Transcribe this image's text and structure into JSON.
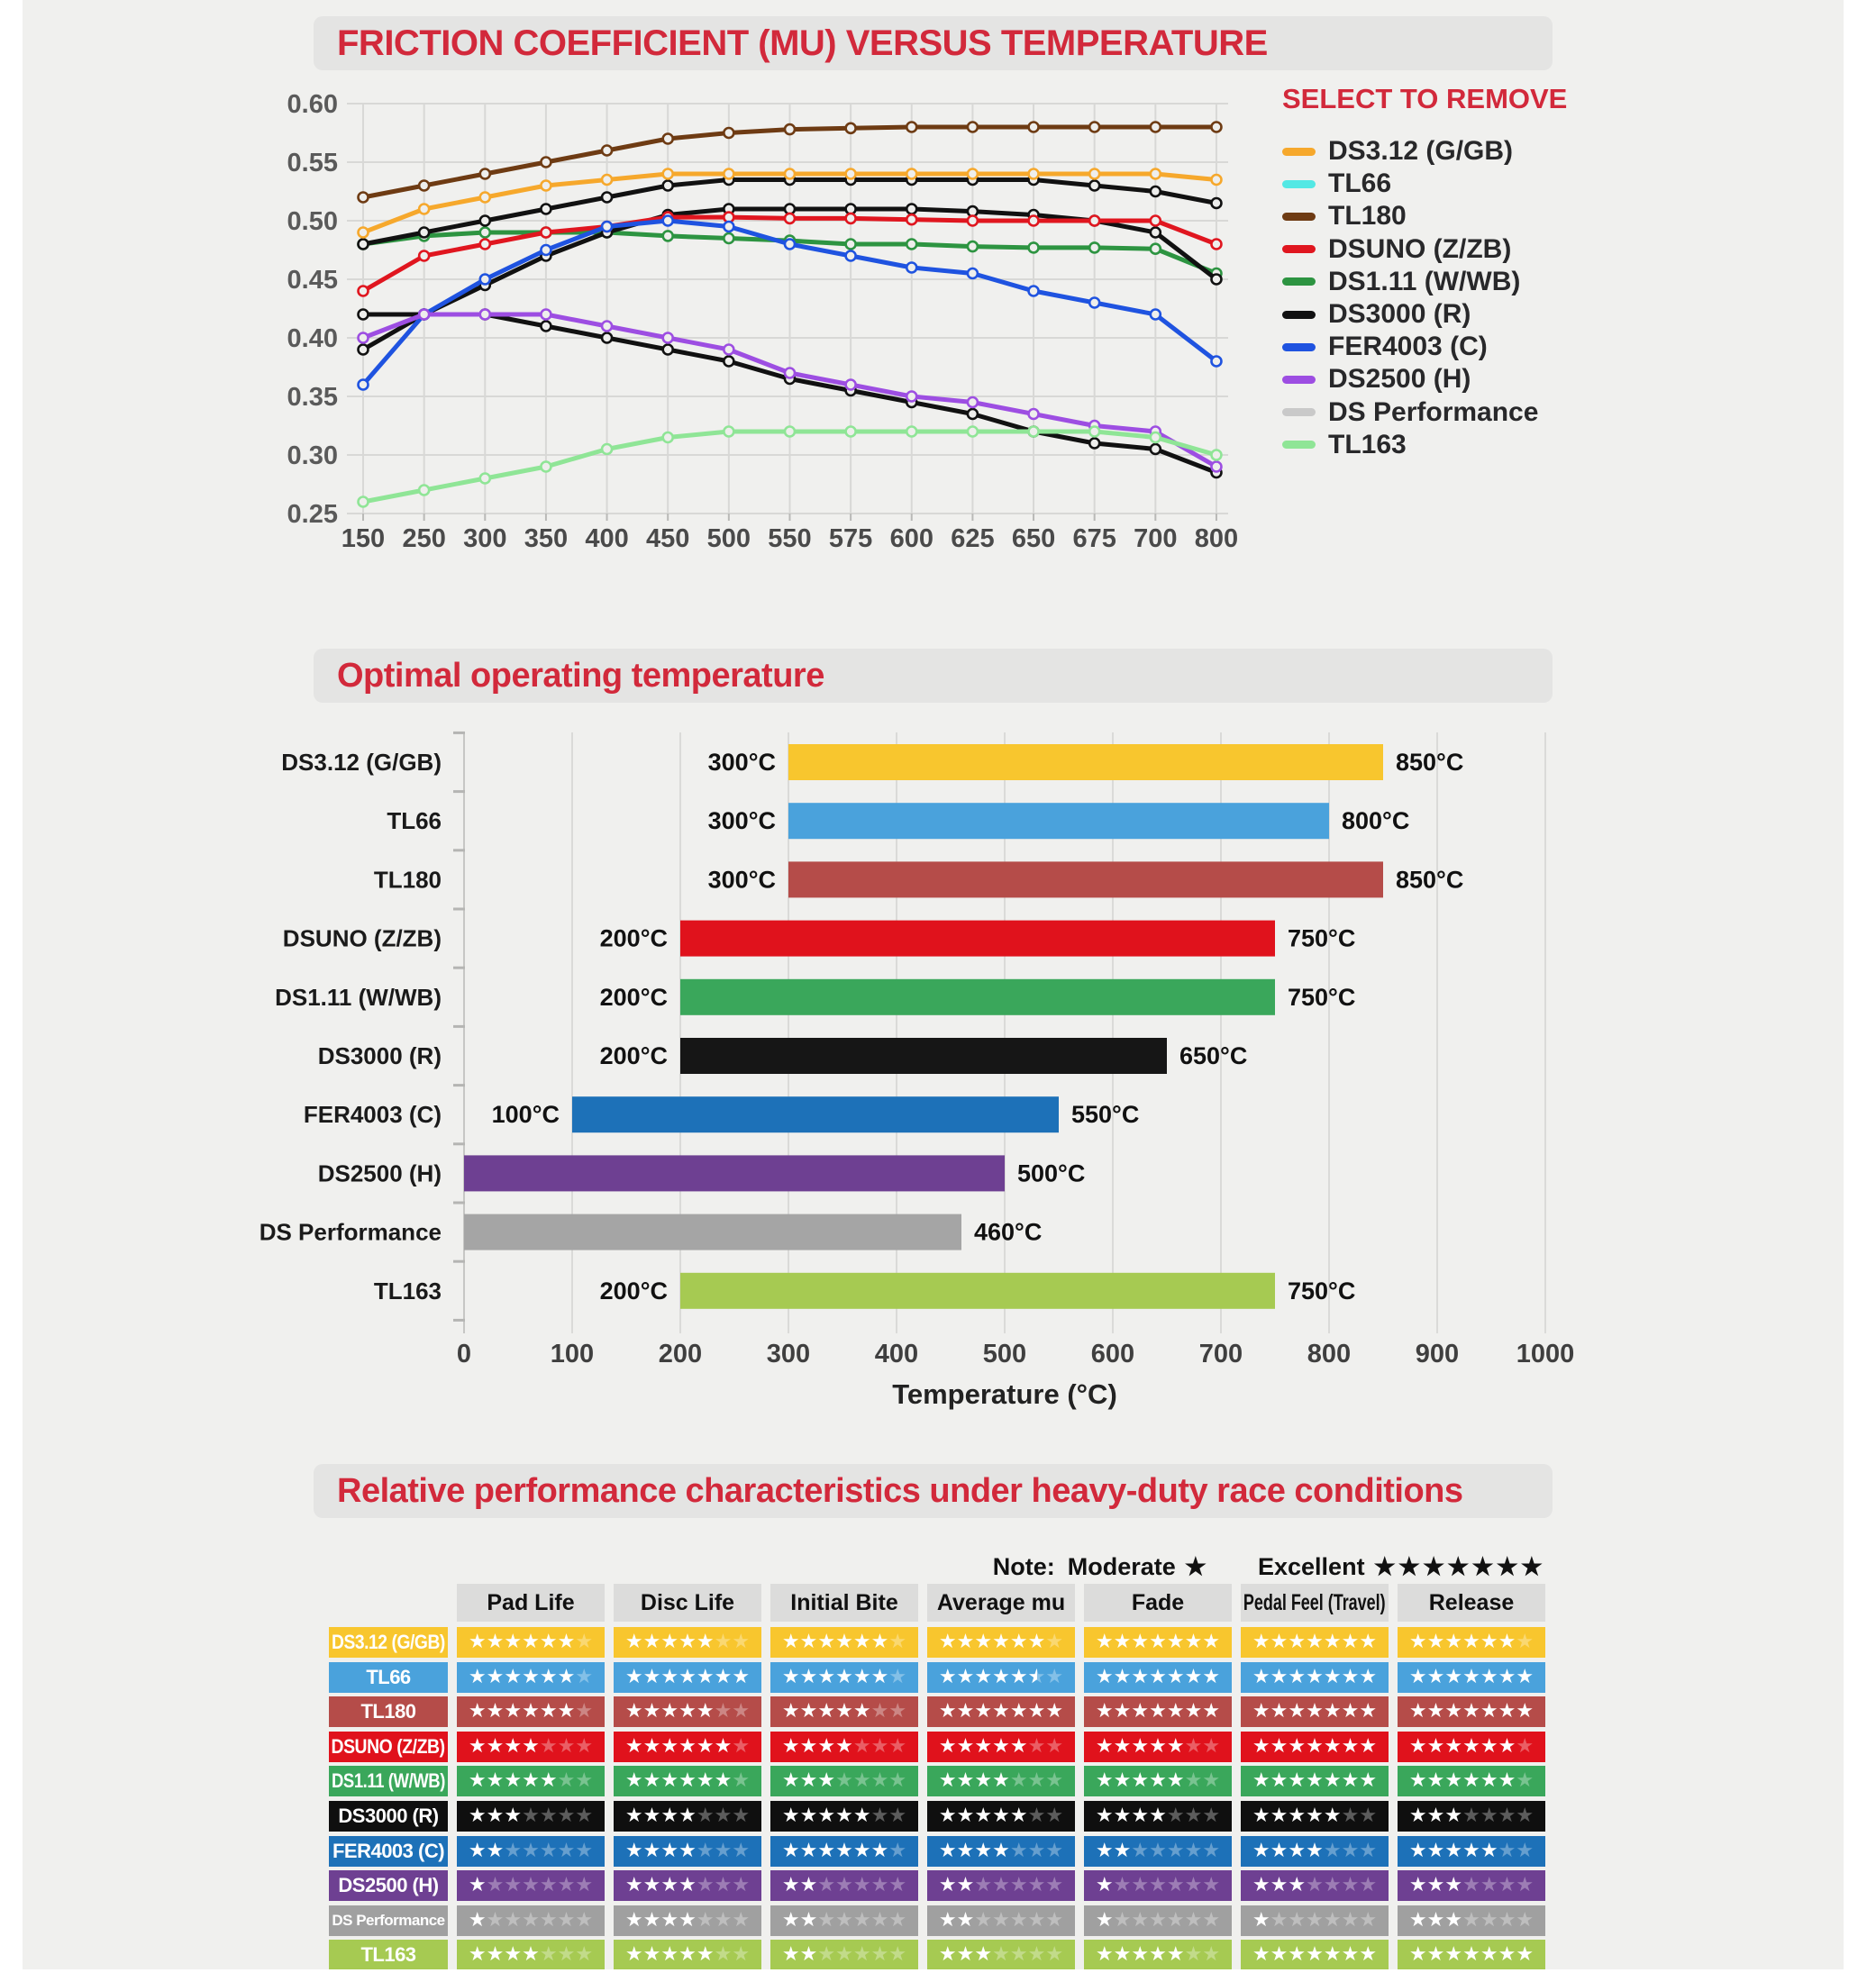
{
  "page": {
    "background": "#F0F0EE",
    "panel_color": "#E4E4E3",
    "accent_red": "#D2293B",
    "gridline_color": "#D8D8D6"
  },
  "chart_data": [
    {
      "id": "friction",
      "type": "line",
      "title": "FRICTION COEFFICIENT (MU) VERSUS TEMPERATURE",
      "legend_title": "SELECT TO REMOVE",
      "legend_position": "right",
      "grid": true,
      "x_categories": [
        "150",
        "250",
        "300",
        "350",
        "400",
        "450",
        "500",
        "550",
        "575",
        "600",
        "625",
        "650",
        "675",
        "700",
        "800"
      ],
      "ylim": [
        0.25,
        0.6
      ],
      "y_ticks": [
        "0.60",
        "0.55",
        "0.50",
        "0.45",
        "0.40",
        "0.35",
        "0.30",
        "0.25"
      ],
      "series": [
        {
          "name": "DS1.11 (W/WB)",
          "legend_order": 4,
          "legend_color": "#2D9441",
          "line_color": "#2D9441",
          "values": [
            0.48,
            0.487,
            0.49,
            0.49,
            0.49,
            0.487,
            0.485,
            0.483,
            0.48,
            0.48,
            0.478,
            0.477,
            0.477,
            0.476,
            0.455
          ]
        },
        {
          "name": "TL66",
          "legend_order": 1,
          "legend_color": "#53E8E4",
          "line_color": "#111111",
          "values": [
            0.48,
            0.49,
            0.5,
            0.51,
            0.52,
            0.53,
            0.535,
            0.535,
            0.535,
            0.535,
            0.535,
            0.535,
            0.53,
            0.525,
            0.515
          ]
        },
        {
          "name": "DS Performance",
          "legend_order": 8,
          "legend_color": "#C9C9C9",
          "line_color": "#111111",
          "values": [
            0.42,
            0.42,
            0.42,
            0.41,
            0.4,
            0.39,
            0.38,
            0.365,
            0.355,
            0.345,
            0.335,
            0.32,
            0.31,
            0.305,
            0.285
          ]
        },
        {
          "name": "DS3000 (R)",
          "legend_order": 5,
          "legend_color": "#111111",
          "line_color": "#111111",
          "values": [
            0.39,
            0.42,
            0.445,
            0.47,
            0.49,
            0.505,
            0.51,
            0.51,
            0.51,
            0.51,
            0.508,
            0.505,
            0.5,
            0.49,
            0.45
          ]
        },
        {
          "name": "TL180",
          "legend_order": 2,
          "legend_color": "#6E3B13",
          "line_color": "#6E3B13",
          "values": [
            0.52,
            0.53,
            0.54,
            0.55,
            0.56,
            0.57,
            0.575,
            0.578,
            0.579,
            0.58,
            0.58,
            0.58,
            0.58,
            0.58,
            0.58
          ]
        },
        {
          "name": "DS3.12 (G/GB)",
          "legend_order": 0,
          "legend_color": "#F6A82C",
          "line_color": "#F6A82C",
          "values": [
            0.49,
            0.51,
            0.52,
            0.53,
            0.535,
            0.54,
            0.54,
            0.54,
            0.54,
            0.54,
            0.54,
            0.54,
            0.54,
            0.54,
            0.535
          ]
        },
        {
          "name": "DSUNO (Z/ZB)",
          "legend_order": 3,
          "legend_color": "#E0161F",
          "line_color": "#E0161F",
          "values": [
            0.44,
            0.47,
            0.48,
            0.49,
            0.495,
            0.503,
            0.503,
            0.502,
            0.502,
            0.501,
            0.5,
            0.5,
            0.5,
            0.5,
            0.48
          ]
        },
        {
          "name": "FER4003 (C)",
          "legend_order": 6,
          "legend_color": "#1F53E0",
          "line_color": "#1F53E0",
          "values": [
            0.36,
            0.42,
            0.45,
            0.475,
            0.495,
            0.5,
            0.495,
            0.48,
            0.47,
            0.46,
            0.455,
            0.44,
            0.43,
            0.42,
            0.38
          ]
        },
        {
          "name": "DS2500 (H)",
          "legend_order": 7,
          "legend_color": "#9D4EE2",
          "line_color": "#9D4EE2",
          "values": [
            0.4,
            0.42,
            0.42,
            0.42,
            0.41,
            0.4,
            0.39,
            0.37,
            0.36,
            0.35,
            0.345,
            0.335,
            0.325,
            0.32,
            0.29
          ]
        },
        {
          "name": "TL163",
          "legend_order": 9,
          "legend_color": "#8FE596",
          "line_color": "#8FE596",
          "values": [
            0.26,
            0.27,
            0.28,
            0.29,
            0.305,
            0.315,
            0.32,
            0.32,
            0.32,
            0.32,
            0.32,
            0.32,
            0.32,
            0.315,
            0.3
          ]
        }
      ]
    },
    {
      "id": "optimal",
      "type": "bar",
      "title": "Optimal operating temperature",
      "xlabel": "Temperature (°C)",
      "xlim": [
        0,
        1000
      ],
      "x_ticks": [
        "0",
        "100",
        "200",
        "300",
        "400",
        "500",
        "600",
        "700",
        "800",
        "900",
        "1000"
      ],
      "grid": true,
      "bars": [
        {
          "name": "DS3.12 (G/GB)",
          "start": 300,
          "end": 850,
          "start_label": "300°C",
          "end_label": "850°C",
          "color": "#F8C62E"
        },
        {
          "name": "TL66",
          "start": 300,
          "end": 800,
          "start_label": "300°C",
          "end_label": "800°C",
          "color": "#4AA2DC"
        },
        {
          "name": "TL180",
          "start": 300,
          "end": 850,
          "start_label": "300°C",
          "end_label": "850°C",
          "color": "#B54C49"
        },
        {
          "name": "DSUNO (Z/ZB)",
          "start": 200,
          "end": 750,
          "start_label": "200°C",
          "end_label": "750°C",
          "color": "#E0121C"
        },
        {
          "name": "DS1.11 (W/WB)",
          "start": 200,
          "end": 750,
          "start_label": "200°C",
          "end_label": "750°C",
          "color": "#3AA75B"
        },
        {
          "name": "DS3000 (R)",
          "start": 200,
          "end": 650,
          "start_label": "200°C",
          "end_label": "650°C",
          "color": "#161616"
        },
        {
          "name": "FER4003 (C)",
          "start": 100,
          "end": 550,
          "start_label": "100°C",
          "end_label": "550°C",
          "color": "#1D71B8"
        },
        {
          "name": "DS2500 (H)",
          "start": 0,
          "end": 500,
          "start_label": "",
          "end_label": "500°C",
          "color": "#6E4092"
        },
        {
          "name": "DS Performance",
          "start": 0,
          "end": 460,
          "start_label": "",
          "end_label": "460°C",
          "color": "#A5A5A5"
        },
        {
          "name": "TL163",
          "start": 200,
          "end": 750,
          "start_label": "200°C",
          "end_label": "750°C",
          "color": "#A6CA52"
        }
      ]
    },
    {
      "id": "ratings",
      "type": "table",
      "title": "Relative performance characteristics under heavy-duty race conditions",
      "note": {
        "prefix": "Note:",
        "moderate_label": "Moderate",
        "moderate_stars": "★",
        "excellent_label": "Excellent",
        "excellent_stars": "★★★★★★★"
      },
      "columns": [
        "Pad Life",
        "Disc Life",
        "Initial Bite",
        "Average mu",
        "Fade",
        "Pedal Feel (Travel)",
        "Release"
      ],
      "max_stars": 7,
      "rows": [
        {
          "name": "DS3.12 (G/GB)",
          "color": "#F8C62E",
          "ratings": [
            6,
            5,
            6,
            6,
            7,
            7,
            6
          ]
        },
        {
          "name": "TL66",
          "color": "#4AA2DC",
          "ratings": [
            6,
            7,
            6,
            5.5,
            7,
            7,
            7
          ]
        },
        {
          "name": "TL180",
          "color": "#B54C49",
          "ratings": [
            6,
            5,
            5,
            7,
            7,
            7,
            7
          ]
        },
        {
          "name": "DSUNO (Z/ZB)",
          "color": "#E0121C",
          "ratings": [
            4,
            6,
            4,
            5,
            5,
            7,
            6
          ]
        },
        {
          "name": "DS1.11 (W/WB)",
          "color": "#3AA75B",
          "ratings": [
            5,
            6,
            3,
            4,
            5,
            7,
            6
          ]
        },
        {
          "name": "DS3000 (R)",
          "color": "#0F0F0F",
          "ratings": [
            3,
            4,
            5,
            5,
            4,
            5,
            3
          ]
        },
        {
          "name": "FER4003 (C)",
          "color": "#1D71B8",
          "ratings": [
            2,
            4,
            6,
            4,
            2,
            4,
            5
          ]
        },
        {
          "name": "DS2500 (H)",
          "color": "#6E4092",
          "ratings": [
            1,
            4,
            2,
            2,
            1,
            3,
            3
          ]
        },
        {
          "name": "DS Performance",
          "color": "#A0A0A0",
          "ratings": [
            1,
            4,
            2,
            2,
            1,
            1,
            3
          ]
        },
        {
          "name": "TL163",
          "color": "#A6CA52",
          "ratings": [
            4,
            5,
            2,
            3,
            5,
            7,
            7
          ]
        }
      ]
    }
  ]
}
